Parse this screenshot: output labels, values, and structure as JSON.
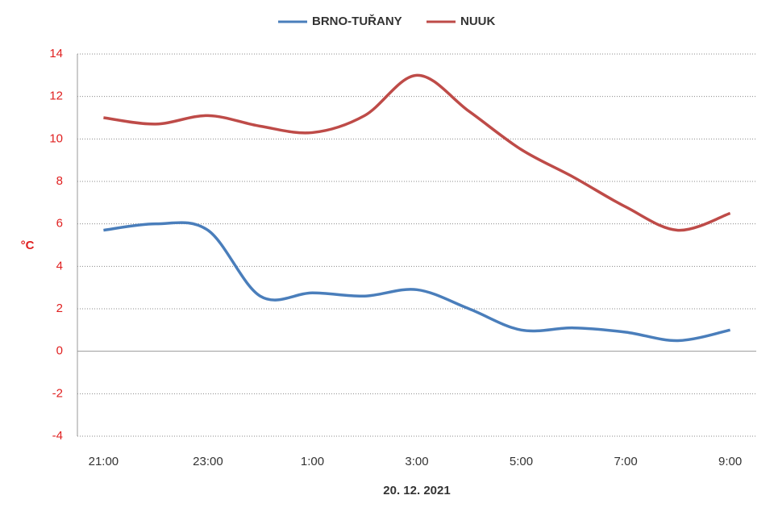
{
  "chart_data": {
    "type": "line",
    "categories": [
      "21:00",
      null,
      "23:00",
      null,
      "1:00",
      null,
      "3:00",
      null,
      "5:00",
      null,
      "7:00",
      null,
      "9:00"
    ],
    "x_label": "20. 12. 2021",
    "y_label": "°C",
    "series": [
      {
        "name": "BRNO-TUŘANY",
        "color": "#4a7ebb",
        "values": [
          5.7,
          6.0,
          5.7,
          2.6,
          2.75,
          2.6,
          2.9,
          2.0,
          1.0,
          1.1,
          0.9,
          0.5,
          1.0
        ]
      },
      {
        "name": "NUUK",
        "color": "#be4b48",
        "values": [
          11.0,
          10.7,
          11.1,
          10.6,
          10.3,
          11.1,
          13.0,
          11.3,
          9.5,
          8.2,
          6.8,
          5.7,
          6.5
        ]
      }
    ],
    "ylim": [
      -4,
      14
    ],
    "yticks": [
      -4,
      -2,
      0,
      2,
      4,
      6,
      8,
      10,
      12,
      14
    ],
    "grid": true,
    "legend": "top"
  }
}
